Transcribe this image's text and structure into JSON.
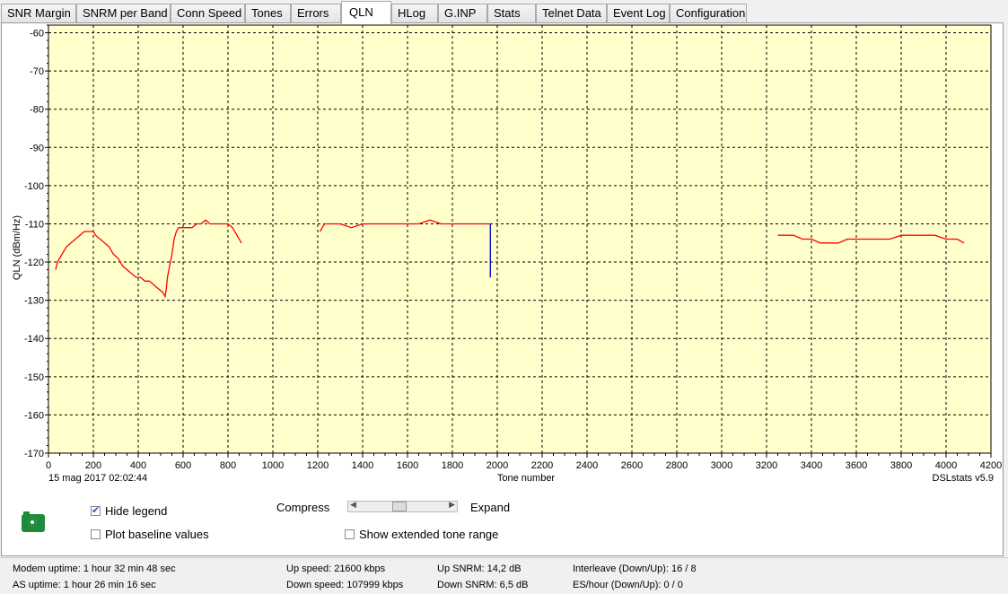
{
  "tabs": [
    {
      "label": "SNR Margin",
      "active": false
    },
    {
      "label": "SNRM per Band",
      "active": false
    },
    {
      "label": "Conn Speed",
      "active": false
    },
    {
      "label": "Tones",
      "active": false
    },
    {
      "label": "Errors",
      "active": false
    },
    {
      "label": "QLN",
      "active": true
    },
    {
      "label": "HLog",
      "active": false
    },
    {
      "label": "G.INP",
      "active": false
    },
    {
      "label": "Stats",
      "active": false
    },
    {
      "label": "Telnet Data",
      "active": false
    },
    {
      "label": "Event Log",
      "active": false
    },
    {
      "label": "Configuration",
      "active": false
    }
  ],
  "chart_data": {
    "type": "line",
    "ylabel": "QLN (dBm/Hz)",
    "xlabel": "Tone number",
    "xlim": [
      0,
      4200
    ],
    "ylim": [
      -170,
      -58
    ],
    "x_ticks": [
      0,
      200,
      400,
      600,
      800,
      1000,
      1200,
      1400,
      1600,
      1800,
      2000,
      2200,
      2400,
      2600,
      2800,
      3000,
      3200,
      3400,
      3600,
      3800,
      4000,
      4200
    ],
    "y_ticks": [
      -60,
      -70,
      -80,
      -90,
      -100,
      -110,
      -120,
      -130,
      -140,
      -150,
      -160,
      -170
    ],
    "grid": true,
    "background_color": "#ffffcc",
    "timestamp": "15 mag 2017 02:02:44",
    "watermark": "DSLstats v5.9",
    "series": [
      {
        "color": "#ff0000",
        "segments": [
          {
            "x": [
              32,
              40,
              60,
              80,
              100,
              120,
              140,
              160,
              180,
              200,
              210,
              230,
              250,
              270,
              290,
              310,
              330,
              350,
              370,
              390,
              410,
              430,
              450,
              470,
              490,
              510,
              520,
              525,
              530,
              540,
              550,
              560,
              570,
              580,
              600,
              620,
              640,
              660,
              680,
              700,
              720,
              740,
              760,
              780,
              800,
              820,
              840,
              860
            ],
            "y": [
              -122,
              -120,
              -118,
              -116,
              -115,
              -114,
              -113,
              -112,
              -112,
              -112,
              -113,
              -114,
              -115,
              -116,
              -118,
              -119,
              -121,
              -122,
              -123,
              -124,
              -124,
              -125,
              -125,
              -126,
              -127,
              -128,
              -129,
              -127,
              -124,
              -121,
              -118,
              -114,
              -112,
              -111,
              -111,
              -111,
              -111,
              -110,
              -110,
              -109,
              -110,
              -110,
              -110,
              -110,
              -110,
              -111,
              -113,
              -115
            ]
          },
          {
            "x": [
              1210,
              1230,
              1260,
              1300,
              1350,
              1400,
              1450,
              1500,
              1550,
              1600,
              1650,
              1700,
              1750,
              1800,
              1850,
              1900,
              1950,
              1970
            ],
            "y": [
              -112,
              -110,
              -110,
              -110,
              -111,
              -110,
              -110,
              -110,
              -110,
              -110,
              -110,
              -109,
              -110,
              -110,
              -110,
              -110,
              -110,
              -110
            ]
          },
          {
            "x": [
              3250,
              3280,
              3320,
              3360,
              3400,
              3440,
              3480,
              3520,
              3560,
              3600,
              3650,
              3700,
              3750,
              3800,
              3850,
              3900,
              3950,
              4000,
              4050,
              4080
            ],
            "y": [
              -113,
              -113,
              -113,
              -114,
              -114,
              -115,
              -115,
              -115,
              -114,
              -114,
              -114,
              -114,
              -114,
              -113,
              -113,
              -113,
              -113,
              -114,
              -114,
              -115
            ]
          }
        ]
      },
      {
        "color": "#0000cc",
        "segments": [
          {
            "x": [
              1969,
              1969
            ],
            "y": [
              -110,
              -124
            ]
          }
        ]
      }
    ]
  },
  "controls": {
    "hide_legend": {
      "label": "Hide legend",
      "checked": true
    },
    "plot_baseline": {
      "label": "Plot baseline values",
      "checked": false
    },
    "compress_label": "Compress",
    "expand_label": "Expand",
    "zoom_slider_fraction": 0.45,
    "extended_tones": {
      "label": "Show extended tone range",
      "checked": false
    }
  },
  "status": {
    "modem_uptime": "Modem uptime:  1 hour 32 min 48 sec",
    "as_uptime": "AS uptime:  1 hour 26 min 16 sec",
    "up_speed": "Up speed: 21600 kbps",
    "down_speed": "Down speed: 107999 kbps",
    "up_snrm": "Up SNRM: 14,2 dB",
    "down_snrm": "Down SNRM: 6,5 dB",
    "interleave": "Interleave (Down/Up): 16 / 8",
    "es_hour": "ES/hour (Down/Up): 0 / 0"
  }
}
